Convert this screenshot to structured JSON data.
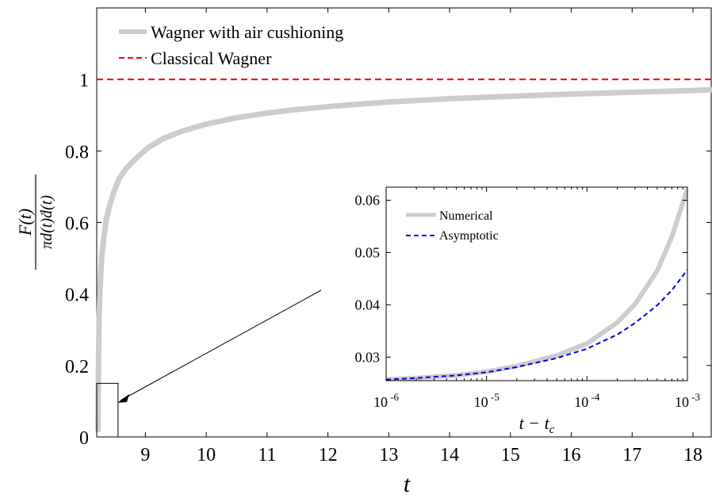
{
  "chart_data": [
    {
      "type": "line",
      "xlabel": "t",
      "ylabel": {
        "numerator": "F(t)",
        "denominator": "πd(t)ḋ(t)"
      },
      "xlim": [
        8.2,
        18.3
      ],
      "ylim": [
        0,
        1.2
      ],
      "xticks": [
        "9",
        "10",
        "11",
        "12",
        "13",
        "14",
        "15",
        "16",
        "17",
        "18"
      ],
      "yticks": [
        "0",
        "0.2",
        "0.4",
        "0.6",
        "0.8",
        "1"
      ],
      "legend_position": "top-left",
      "series": [
        {
          "name": "Wagner with air cushioning",
          "color": "#cccccc",
          "x": [
            8.22,
            8.23,
            8.24,
            8.26,
            8.28,
            8.31,
            8.35,
            8.4,
            8.47,
            8.56,
            8.68,
            8.85,
            9.05,
            9.3,
            9.6,
            10.0,
            10.5,
            11.0,
            11.5,
            12.0,
            13.0,
            14.0,
            15.0,
            16.0,
            17.0,
            18.0,
            18.3
          ],
          "y": [
            0.02,
            0.22,
            0.34,
            0.44,
            0.5,
            0.55,
            0.6,
            0.64,
            0.68,
            0.72,
            0.75,
            0.78,
            0.81,
            0.835,
            0.855,
            0.875,
            0.893,
            0.906,
            0.916,
            0.924,
            0.937,
            0.946,
            0.953,
            0.959,
            0.964,
            0.969,
            0.971
          ]
        },
        {
          "name": "Classical Wagner",
          "color": "#ff0000",
          "x": [
            8.2,
            18.3
          ],
          "y": [
            1.0,
            1.0
          ]
        }
      ],
      "annotation": {
        "box_x": [
          8.2,
          8.55
        ],
        "box_y": [
          0,
          0.15
        ]
      }
    },
    {
      "type": "line",
      "xlabel": "t − t_c",
      "xscale": "log",
      "xlim": [
        1e-06,
        0.001
      ],
      "ylim": [
        0.0255,
        0.0625
      ],
      "xticks": [
        {
          "base": "10",
          "exp": "-6"
        },
        {
          "base": "10",
          "exp": "-5"
        },
        {
          "base": "10",
          "exp": "-4"
        },
        {
          "base": "10",
          "exp": "-3"
        }
      ],
      "yticks": [
        "0.03",
        "0.04",
        "0.05",
        "0.06"
      ],
      "legend_position": "top-left",
      "series": [
        {
          "name": "Numerical",
          "color": "#cccccc",
          "x": [
            1e-06,
            2e-06,
            5e-06,
            1e-05,
            2e-05,
            5e-05,
            0.0001,
            0.0002,
            0.0003,
            0.0005,
            0.0007,
            0.001
          ],
          "y": [
            0.0257,
            0.026,
            0.0265,
            0.0272,
            0.0283,
            0.0303,
            0.0326,
            0.0366,
            0.0401,
            0.0465,
            0.053,
            0.0622
          ]
        },
        {
          "name": "Asymptotic",
          "color": "#0000dd",
          "x": [
            1e-06,
            2e-06,
            5e-06,
            1e-05,
            2e-05,
            5e-05,
            0.0001,
            0.0002,
            0.0003,
            0.0005,
            0.0007,
            0.001
          ],
          "y": [
            0.0257,
            0.026,
            0.0265,
            0.0271,
            0.0281,
            0.0298,
            0.0316,
            0.0343,
            0.0365,
            0.0399,
            0.0428,
            0.0467
          ]
        }
      ]
    }
  ]
}
